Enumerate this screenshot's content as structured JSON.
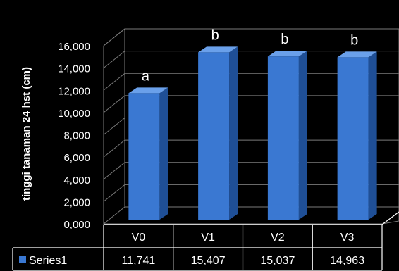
{
  "chart_data": {
    "type": "bar",
    "title": "",
    "xlabel": "",
    "ylabel": "tinggi tanaman 24 hst (cm)",
    "ylim": [
      0,
      16
    ],
    "y_ticks": [
      "0,000",
      "2,000",
      "4,000",
      "6,000",
      "8,000",
      "10,000",
      "12,000",
      "14,000",
      "16,000"
    ],
    "categories": [
      "V0",
      "V1",
      "V2",
      "V3"
    ],
    "series": [
      {
        "name": "Series1",
        "values": [
          11.741,
          15.407,
          15.037,
          14.963
        ],
        "table_values": [
          "11,741",
          "15,407",
          "15,037",
          "14,963"
        ]
      }
    ],
    "annotations": [
      "a",
      "b",
      "b",
      "b"
    ],
    "bar_style": "3d",
    "grid": true,
    "legend": "data-table",
    "colors": {
      "background": "#000000",
      "bar_front": "#3a78d2",
      "bar_side": "#1f4f96",
      "bar_top": "#6aa0ea",
      "text": "#ffffff",
      "grid": "#7a7a7a",
      "table_line": "#ffffff"
    }
  }
}
